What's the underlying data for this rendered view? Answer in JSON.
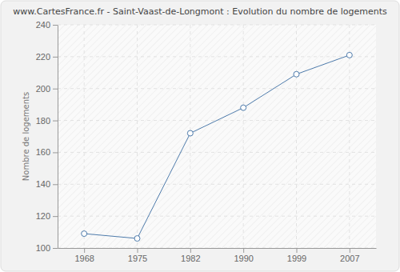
{
  "chart_data": {
    "type": "line",
    "title": "www.CartesFrance.fr - Saint-Vaast-de-Longmont : Evolution du nombre de logements",
    "y_label": "Nombre de logements",
    "categories": [
      "1968",
      "1975",
      "1982",
      "1990",
      "1999",
      "2007"
    ],
    "values": [
      109,
      106,
      172,
      188,
      209,
      221
    ],
    "color": "#4f7cac",
    "marker": "circle",
    "ylim": [
      100,
      240
    ],
    "yticks": [
      100,
      120,
      140,
      160,
      180,
      200,
      220,
      240
    ],
    "grid": true
  }
}
